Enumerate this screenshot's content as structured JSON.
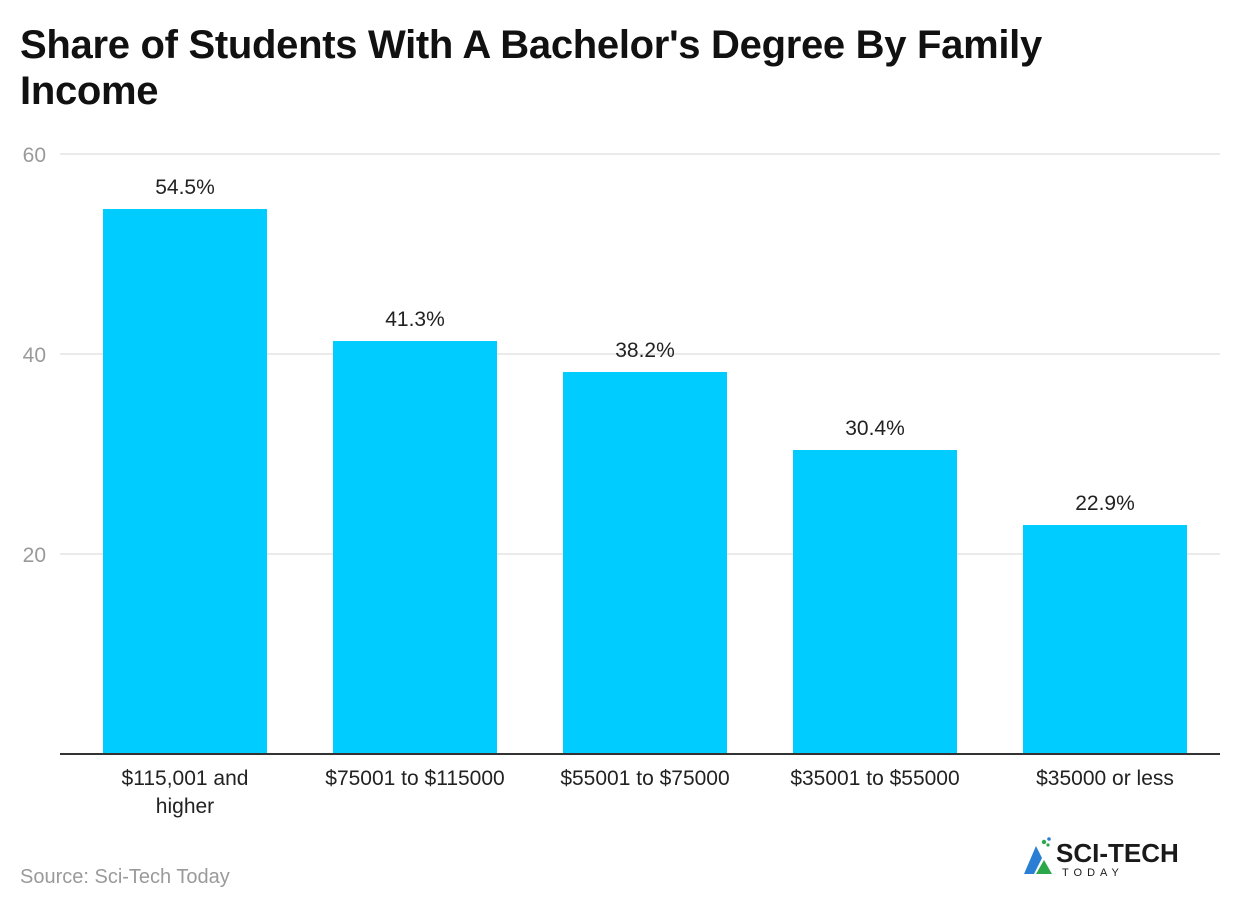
{
  "title": "Share of Students With A Bachelor's Degree By Family Income",
  "source": "Source: Sci-Tech Today",
  "brand": {
    "name": "SCI-TECH",
    "tagline": "TODAY"
  },
  "colors": {
    "bar": "#00ccff",
    "grid": "#e3e3e3",
    "axis": "#333333",
    "tick_label": "#9a9a9a",
    "category_label": "#222222",
    "value_label": "#222222",
    "brand_blue": "#2a7fd4",
    "brand_green": "#2aa84a",
    "brand_dark": "#1a1a1a"
  },
  "chart_data": {
    "type": "bar",
    "categories": [
      [
        "$115,001 and",
        "higher"
      ],
      [
        "$75001 to $115000"
      ],
      [
        "$55001 to $75000"
      ],
      [
        "$35001 to $55000"
      ],
      [
        "$35000 or less"
      ]
    ],
    "values": [
      54.5,
      41.3,
      38.2,
      30.4,
      22.9
    ],
    "value_labels": [
      "54.5%",
      "41.3%",
      "38.2%",
      "30.4%",
      "22.9%"
    ],
    "ylim": [
      0,
      60
    ],
    "yticks": [
      20,
      40,
      60
    ],
    "grid": true,
    "legend": false
  }
}
